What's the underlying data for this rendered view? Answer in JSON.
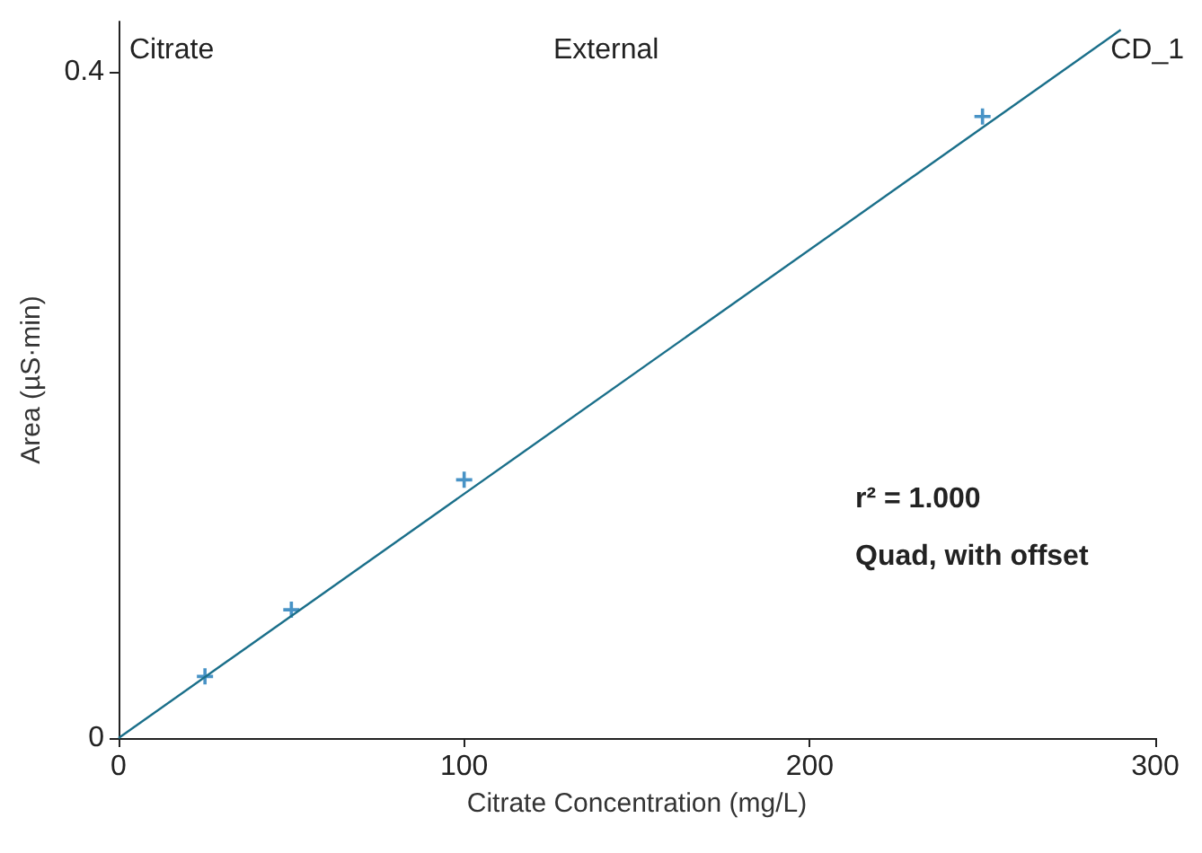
{
  "chart_data": {
    "type": "scatter",
    "xlabel": "Citrate Concentration (mg/L)",
    "ylabel": "Area (µS·min)",
    "annotations": [
      "Citrate",
      "External",
      "CD_1",
      "r² = 1.000",
      "Quad, with offset"
    ],
    "xlim": [
      0,
      300
    ],
    "xticks": [
      0,
      100,
      200,
      300
    ],
    "ylim": [
      0,
      0.43
    ],
    "yticks": [
      0,
      0.4
    ],
    "grid": false,
    "series": [
      {
        "color": "#1a78b8",
        "marker": "cross",
        "x": [
          25,
          50,
          100,
          250
        ],
        "values": [
          0.037,
          0.077,
          0.155,
          0.373
        ]
      },
      {
        "type": "line",
        "color": "#1a6f8a",
        "marker": "none",
        "line_style": "solid",
        "x": [
          0,
          290
        ],
        "values": [
          0,
          0.425
        ]
      }
    ]
  }
}
